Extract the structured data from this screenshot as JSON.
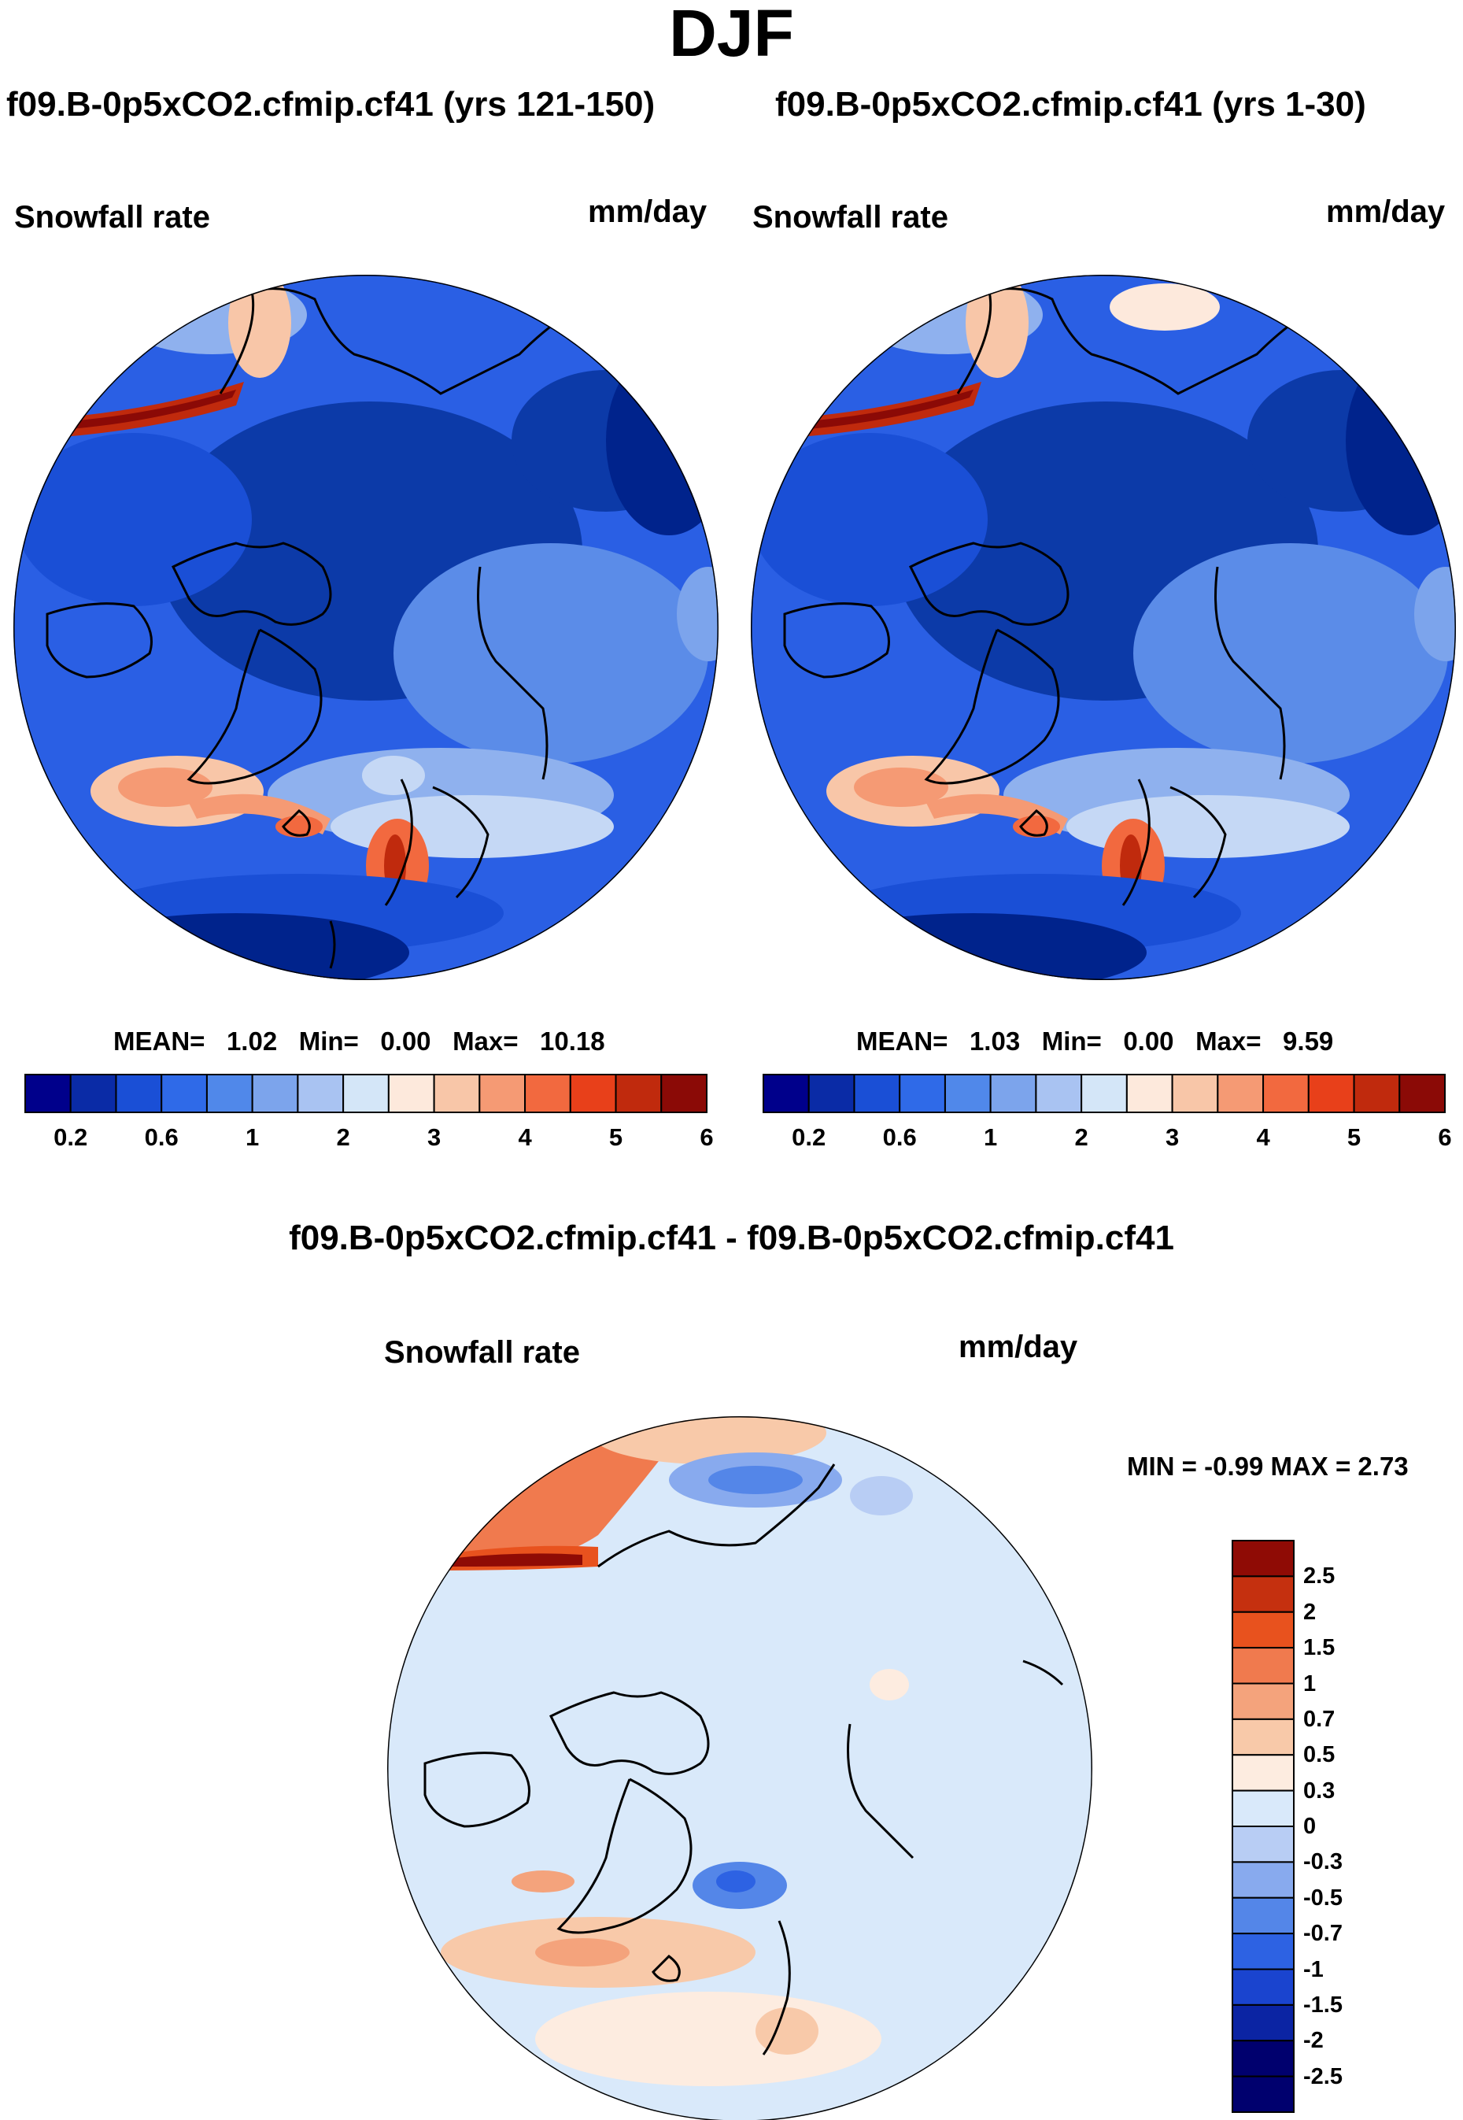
{
  "title": "DJF",
  "panels": [
    {
      "id": "left",
      "title": "f09.B-0p5xCO2.cfmip.cf41 (yrs 121-150)",
      "variable": "Snowfall rate",
      "units": "mm/day",
      "stats": {
        "mean_label": "MEAN=",
        "mean": "1.02",
        "min_label": "Min=",
        "min": "0.00",
        "max_label": "Max=",
        "max": "10.18"
      }
    },
    {
      "id": "right",
      "title": "f09.B-0p5xCO2.cfmip.cf41 (yrs 1-30)",
      "variable": "Snowfall rate",
      "units": "mm/day",
      "stats": {
        "mean_label": "MEAN=",
        "mean": "1.03",
        "min_label": "Min=",
        "min": "0.00",
        "max_label": "Max=",
        "max": "9.59"
      }
    },
    {
      "id": "diff",
      "title": "f09.B-0p5xCO2.cfmip.cf41 - f09.B-0p5xCO2.cfmip.cf41",
      "variable": "Snowfall rate",
      "units": "mm/day",
      "stats_text": "MIN =  -0.99 MAX =   2.73"
    }
  ],
  "colorbar_abs": {
    "colors": [
      "#00008b",
      "#0a2ba6",
      "#1a4fd6",
      "#2f6ae8",
      "#5088ea",
      "#7ca4ec",
      "#a9c3f2",
      "#d4e6f8",
      "#fde9dc",
      "#f8c6a8",
      "#f59a74",
      "#f2693f",
      "#e8401a",
      "#c02a0d",
      "#8b0a06"
    ],
    "ticks": [
      "0.2",
      "0.6",
      "1",
      "2",
      "3",
      "4",
      "5",
      "6"
    ]
  },
  "colorbar_diff": {
    "colors": [
      "#00006e",
      "#0b24a3",
      "#1a44cf",
      "#2d62e3",
      "#5486e8",
      "#88aaee",
      "#b8cdf4",
      "#d9e9fa",
      "#fdece0",
      "#f8c9a9",
      "#f4a37c",
      "#f07a4e",
      "#e8521e",
      "#c5300f",
      "#8f0b05"
    ],
    "ticks": [
      "2.5",
      "2",
      "1.5",
      "1",
      "0.7",
      "0.5",
      "0.3",
      "0",
      "-0.3",
      "-0.5",
      "-0.7",
      "-1",
      "-1.5",
      "-2",
      "-2.5"
    ]
  }
}
